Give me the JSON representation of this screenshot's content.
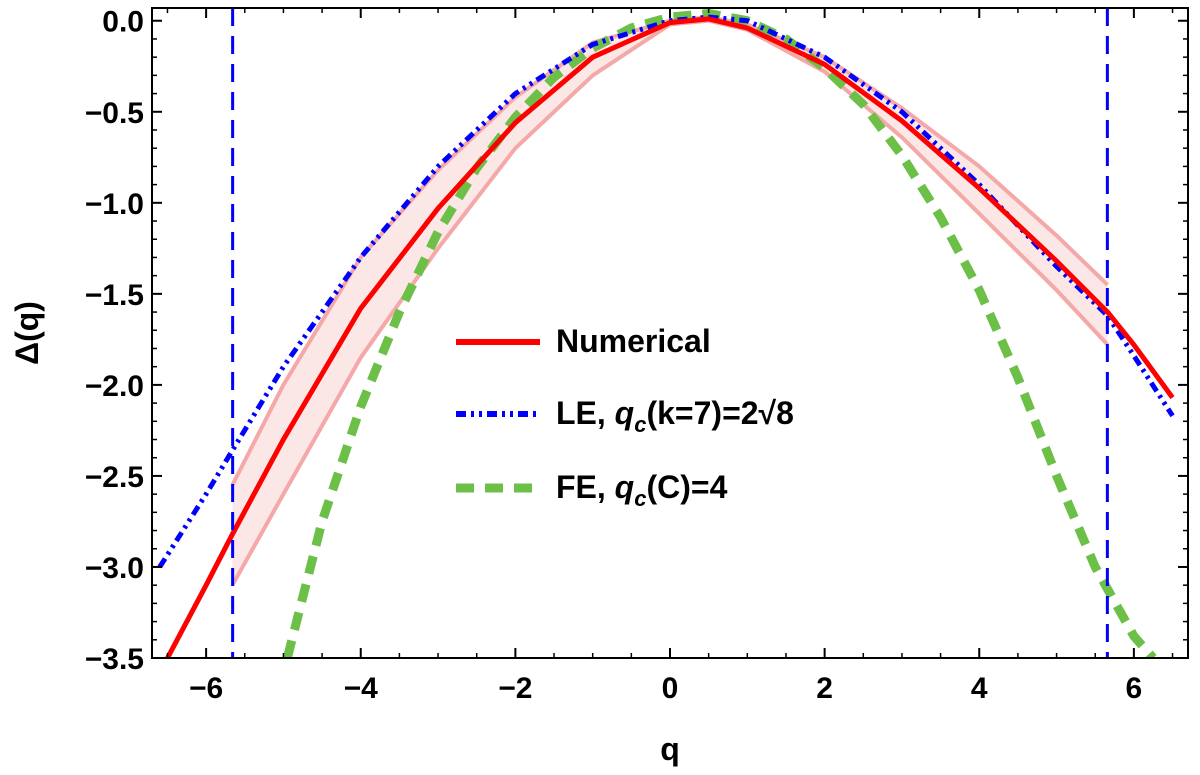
{
  "chart_data": {
    "type": "line",
    "title": "",
    "xlabel": "q",
    "ylabel": "Δ(q)",
    "xlim": [
      -6.7,
      6.7
    ],
    "ylim": [
      -3.5,
      0.07
    ],
    "x_ticks": [
      -6,
      -4,
      -2,
      0,
      2,
      4,
      6
    ],
    "x_tick_labels": [
      "−6",
      "−4",
      "−2",
      "0",
      "2",
      "4",
      "6"
    ],
    "y_ticks": [
      0,
      -0.5,
      -1,
      -1.5,
      -2,
      -2.5,
      -3,
      -3.5
    ],
    "y_tick_labels": [
      "0.0",
      "−0.5",
      "−1.0",
      "−1.5",
      "−2.0",
      "−2.5",
      "−3.0",
      "−3.5"
    ],
    "grid": false,
    "legend_position": "center",
    "vertical_lines": [
      {
        "x": -5.657,
        "color": "#0000ff",
        "style": "dashed"
      },
      {
        "x": 5.657,
        "color": "#0000ff",
        "style": "dashed"
      }
    ],
    "band": {
      "color": "#f4a8a8",
      "x": [
        -5.66,
        -5.0,
        -4.0,
        -3.0,
        -2.0,
        -1.0,
        0.0,
        0.5,
        1.0,
        2.0,
        3.0,
        4.0,
        5.0,
        5.66
      ],
      "upper": [
        -2.55,
        -2.0,
        -1.3,
        -0.82,
        -0.42,
        -0.12,
        0.0,
        0.02,
        -0.02,
        -0.2,
        -0.48,
        -0.8,
        -1.18,
        -1.45
      ],
      "lower": [
        -3.1,
        -2.6,
        -1.85,
        -1.25,
        -0.7,
        -0.3,
        -0.02,
        0.0,
        -0.05,
        -0.28,
        -0.64,
        -1.06,
        -1.48,
        -1.78
      ]
    },
    "series": [
      {
        "name": "Numerical",
        "color": "#ff0000",
        "style": "solid",
        "x": [
          -6.5,
          -6.0,
          -5.66,
          -5.0,
          -4.0,
          -3.0,
          -2.0,
          -1.0,
          0.0,
          0.5,
          1.0,
          2.0,
          3.0,
          4.0,
          5.0,
          5.66,
          6.0,
          6.5
        ],
        "y": [
          -3.5,
          -3.1,
          -2.82,
          -2.3,
          -1.58,
          -1.03,
          -0.56,
          -0.2,
          -0.01,
          0.01,
          -0.04,
          -0.24,
          -0.55,
          -0.92,
          -1.32,
          -1.6,
          -1.78,
          -2.07
        ]
      },
      {
        "name": "LE, ",
        "name_math": "q",
        "name_sub": "c",
        "name_rest": "(k=7)=2",
        "name_radical": "√",
        "name_radicand": "8",
        "color": "#0000ff",
        "style": "dashdotdot",
        "x": [
          -6.6,
          -6.0,
          -5.66,
          -5.0,
          -4.0,
          -3.0,
          -2.0,
          -1.0,
          0.0,
          0.5,
          1.0,
          2.0,
          3.0,
          4.0,
          5.0,
          5.66,
          6.0,
          6.5
        ],
        "y": [
          -3.0,
          -2.6,
          -2.36,
          -1.9,
          -1.3,
          -0.8,
          -0.4,
          -0.13,
          0.0,
          0.02,
          0.0,
          -0.2,
          -0.5,
          -0.9,
          -1.35,
          -1.62,
          -1.84,
          -2.17
        ]
      },
      {
        "name": "FE, ",
        "name_math": "q",
        "name_sub": "c",
        "name_rest": "(C)=4",
        "color": "#6cbf47",
        "style": "dashed",
        "x": [
          -4.95,
          -4.5,
          -4.0,
          -3.5,
          -3.0,
          -2.5,
          -2.0,
          -1.5,
          -1.0,
          -0.5,
          0.0,
          0.5,
          1.0,
          1.5,
          2.0,
          2.5,
          3.0,
          3.5,
          4.0,
          4.5,
          5.0,
          5.5,
          6.0,
          6.25
        ],
        "y": [
          -3.5,
          -2.75,
          -2.12,
          -1.6,
          -1.16,
          -0.81,
          -0.53,
          -0.31,
          -0.15,
          -0.04,
          0.02,
          0.04,
          0.0,
          -0.1,
          -0.26,
          -0.46,
          -0.74,
          -1.08,
          -1.48,
          -1.96,
          -2.5,
          -3.0,
          -3.38,
          -3.5
        ]
      }
    ]
  }
}
